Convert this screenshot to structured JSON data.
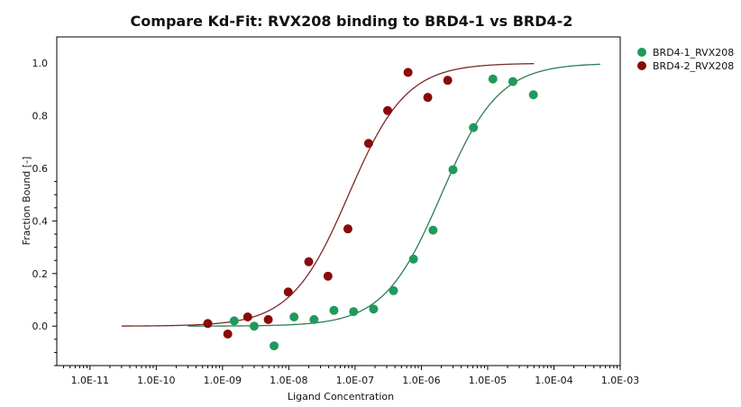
{
  "chart_data": {
    "type": "scatter",
    "title": "Compare Kd-Fit: RVX208 binding to BRD4-1 vs BRD4-2",
    "xlabel": "Ligand Concentration",
    "ylabel": "Fraction Bound [-]",
    "x_scale": "log",
    "xlim": [
      3.16e-12,
      0.001
    ],
    "ylim": [
      -0.15,
      1.1
    ],
    "x_ticks": [
      1e-11,
      1e-10,
      1e-09,
      1e-08,
      1e-07,
      1e-06,
      1e-05,
      0.0001,
      0.001
    ],
    "x_tick_labels": [
      "1.0E-11",
      "1.0E-10",
      "1.0E-09",
      "1.0E-08",
      "1.0E-07",
      "1.0E-06",
      "1.0E-05",
      "1.0E-04",
      "1.0E-03"
    ],
    "y_ticks": [
      0.0,
      0.2,
      0.4,
      0.6,
      0.8,
      1.0
    ],
    "y_tick_labels": [
      "0.0",
      "0.2",
      "0.4",
      "0.6",
      "0.8",
      "1.0"
    ],
    "grid": false,
    "legend_position": "top-right",
    "series": [
      {
        "name": "BRD4-1_RVX208",
        "color": "#1f9a5c",
        "fit_color": "#2e7d55",
        "kd": 2e-06,
        "fit_range": [
          3e-10,
          0.0005
        ],
        "points": [
          {
            "x": 1.5e-09,
            "y": 0.02
          },
          {
            "x": 3e-09,
            "y": 0.0
          },
          {
            "x": 6e-09,
            "y": -0.075
          },
          {
            "x": 1.2e-08,
            "y": 0.035
          },
          {
            "x": 2.4e-08,
            "y": 0.025
          },
          {
            "x": 4.8e-08,
            "y": 0.06
          },
          {
            "x": 9.5e-08,
            "y": 0.055
          },
          {
            "x": 1.9e-07,
            "y": 0.065
          },
          {
            "x": 3.8e-07,
            "y": 0.135
          },
          {
            "x": 7.6e-07,
            "y": 0.255
          },
          {
            "x": 1.5e-06,
            "y": 0.365
          },
          {
            "x": 3e-06,
            "y": 0.595
          },
          {
            "x": 6.1e-06,
            "y": 0.755
          },
          {
            "x": 1.2e-05,
            "y": 0.94
          },
          {
            "x": 2.4e-05,
            "y": 0.93
          },
          {
            "x": 4.9e-05,
            "y": 0.88
          }
        ]
      },
      {
        "name": "BRD4-2_RVX208",
        "color": "#8b0a0a",
        "fit_color": "#7a2a2a",
        "kd": 8e-08,
        "fit_range": [
          3e-11,
          5e-05
        ],
        "points": [
          {
            "x": 6e-10,
            "y": 0.01
          },
          {
            "x": 1.2e-09,
            "y": -0.03
          },
          {
            "x": 2.4e-09,
            "y": 0.035
          },
          {
            "x": 4.9e-09,
            "y": 0.025
          },
          {
            "x": 9.8e-09,
            "y": 0.13
          },
          {
            "x": 2e-08,
            "y": 0.245
          },
          {
            "x": 3.9e-08,
            "y": 0.19
          },
          {
            "x": 7.8e-08,
            "y": 0.37
          },
          {
            "x": 1.6e-07,
            "y": 0.695
          },
          {
            "x": 3.1e-07,
            "y": 0.82
          },
          {
            "x": 6.3e-07,
            "y": 0.965
          },
          {
            "x": 1.25e-06,
            "y": 0.87
          },
          {
            "x": 2.5e-06,
            "y": 0.935
          }
        ]
      }
    ]
  }
}
